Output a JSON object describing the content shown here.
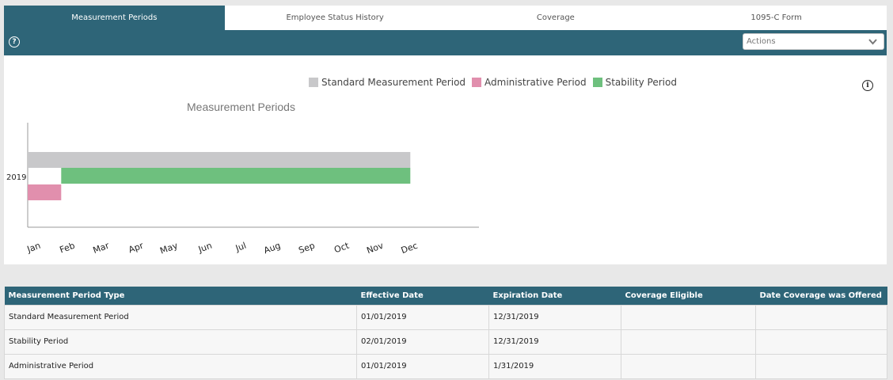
{
  "tabs": [
    {
      "label": "Measurement Periods",
      "active": true
    },
    {
      "label": "Employee Status History",
      "active": false
    },
    {
      "label": "Coverage",
      "active": false
    },
    {
      "label": "1095-C Form",
      "active": false
    }
  ],
  "toolbar": {
    "help_icon": "question-circle-icon",
    "help_glyph": "?",
    "actions_placeholder": "Actions",
    "actions_icon": "chevron-down-icon"
  },
  "chart_panel": {
    "info_icon": "info-circle-icon",
    "info_glyph": "i"
  },
  "chart_data": {
    "type": "bar",
    "orientation": "horizontal",
    "title": "Measurement Periods",
    "categories": [
      "2019"
    ],
    "x_ticks": [
      "Jan",
      "Feb",
      "Mar",
      "Apr",
      "May",
      "Jun",
      "Jul",
      "Aug",
      "Sep",
      "Oct",
      "Nov",
      "Dec"
    ],
    "legend_position": "top",
    "series": [
      {
        "name": "Standard Measurement Period",
        "color": "#c8c8ca",
        "start": "Jan",
        "end": "Dec"
      },
      {
        "name": "Administrative Period",
        "color": "#e18fad",
        "start": "Jan",
        "end": "Feb"
      },
      {
        "name": "Stability Period",
        "color": "#6ec07e",
        "start": "Feb",
        "end": "Dec"
      }
    ]
  },
  "table": {
    "headers": [
      "Measurement Period Type",
      "Effective Date",
      "Expiration Date",
      "Coverage Eligible",
      "Date Coverage was Offered"
    ],
    "rows": [
      [
        "Standard Measurement Period",
        "01/01/2019",
        "12/31/2019",
        "",
        ""
      ],
      [
        "Stability Period",
        "02/01/2019",
        "12/31/2019",
        "",
        ""
      ],
      [
        "Administrative Period",
        "01/01/2019",
        "1/31/2019",
        "",
        ""
      ]
    ]
  },
  "colors": {
    "header_bg": "#2e6578",
    "page_bg": "#e8e8e8"
  }
}
